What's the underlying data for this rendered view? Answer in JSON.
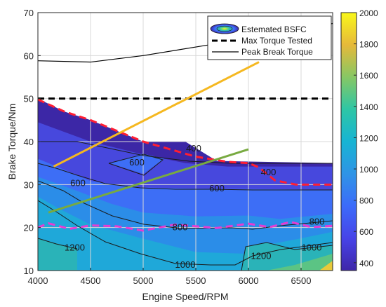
{
  "chart_data": {
    "type": "contour",
    "xlabel": "Engine Speed/RPM",
    "ylabel": "Brake Torque/Nm",
    "xlim": [
      4000,
      6800
    ],
    "ylim": [
      10,
      70
    ],
    "xticks": [
      4000,
      4500,
      5000,
      5500,
      6000,
      6500
    ],
    "yticks": [
      10,
      20,
      30,
      40,
      50,
      60,
      70
    ],
    "grid": true,
    "colorbar": {
      "range": [
        350,
        2000
      ],
      "ticks": [
        400,
        600,
        800,
        1000,
        1200,
        1400,
        1600,
        1800,
        2000
      ],
      "colormap": "parula"
    },
    "legend": {
      "placement": "top-right",
      "entries": [
        "Estemated BSFC",
        "Max Torque Tested",
        "Peak Break Torque"
      ]
    },
    "contour_labels": [
      {
        "text": "600",
        "x": 4940,
        "y": 35.3
      },
      {
        "text": "400",
        "x": 5480,
        "y": 38.5
      },
      {
        "text": "400",
        "x": 6190,
        "y": 33.0
      },
      {
        "text": "600",
        "x": 4380,
        "y": 30.5
      },
      {
        "text": "600",
        "x": 5700,
        "y": 29.2
      },
      {
        "text": "800",
        "x": 5350,
        "y": 20.2
      },
      {
        "text": "800",
        "x": 6650,
        "y": 21.5
      },
      {
        "text": "1000",
        "x": 6600,
        "y": 15.5
      },
      {
        "text": "1000",
        "x": 5400,
        "y": 11.5
      },
      {
        "text": "1200",
        "x": 4350,
        "y": 15.5
      },
      {
        "text": "1200",
        "x": 6120,
        "y": 13.5
      }
    ],
    "series": [
      {
        "name": "Max Torque Tested",
        "style": "dashed-black",
        "x": [
          4000,
          6800
        ],
        "y": [
          50,
          50
        ]
      },
      {
        "name": "Peak Break Torque",
        "style": "solid-black",
        "x": [
          4000,
          4500,
          5000,
          5500,
          6000,
          6500,
          6800
        ],
        "y": [
          58.8,
          58.5,
          60.0,
          62.0,
          64.0,
          65.0,
          67.5
        ]
      },
      {
        "style": "dashed-red",
        "color": "#ff1e32",
        "x": [
          4000,
          4250,
          4500,
          4800,
          5000,
          5500,
          5800,
          6000,
          6100,
          6250,
          6450,
          6800
        ],
        "y": [
          49.8,
          47.0,
          45.0,
          42.0,
          40.0,
          36.5,
          35.3,
          35.0,
          34.0,
          31.0,
          30.0,
          30.0
        ]
      },
      {
        "style": "dashed-magenta",
        "color": "#e63cd2",
        "x": [
          4000,
          4100,
          4300,
          4500,
          4750,
          5000,
          5300,
          5700,
          6000,
          6200,
          6400,
          6600,
          6800
        ],
        "y": [
          20.0,
          21.0,
          19.7,
          20.5,
          20.3,
          19.3,
          20.7,
          19.9,
          20.9,
          20.1,
          21.3,
          20.1,
          20.4
        ]
      },
      {
        "style": "solid-orange",
        "color": "#f5b820",
        "x": [
          4150,
          6100
        ],
        "y": [
          34.2,
          58.5
        ]
      },
      {
        "style": "solid-green",
        "color": "#78aa40",
        "x": [
          4100,
          6000
        ],
        "y": [
          23.5,
          38.2
        ]
      }
    ]
  }
}
